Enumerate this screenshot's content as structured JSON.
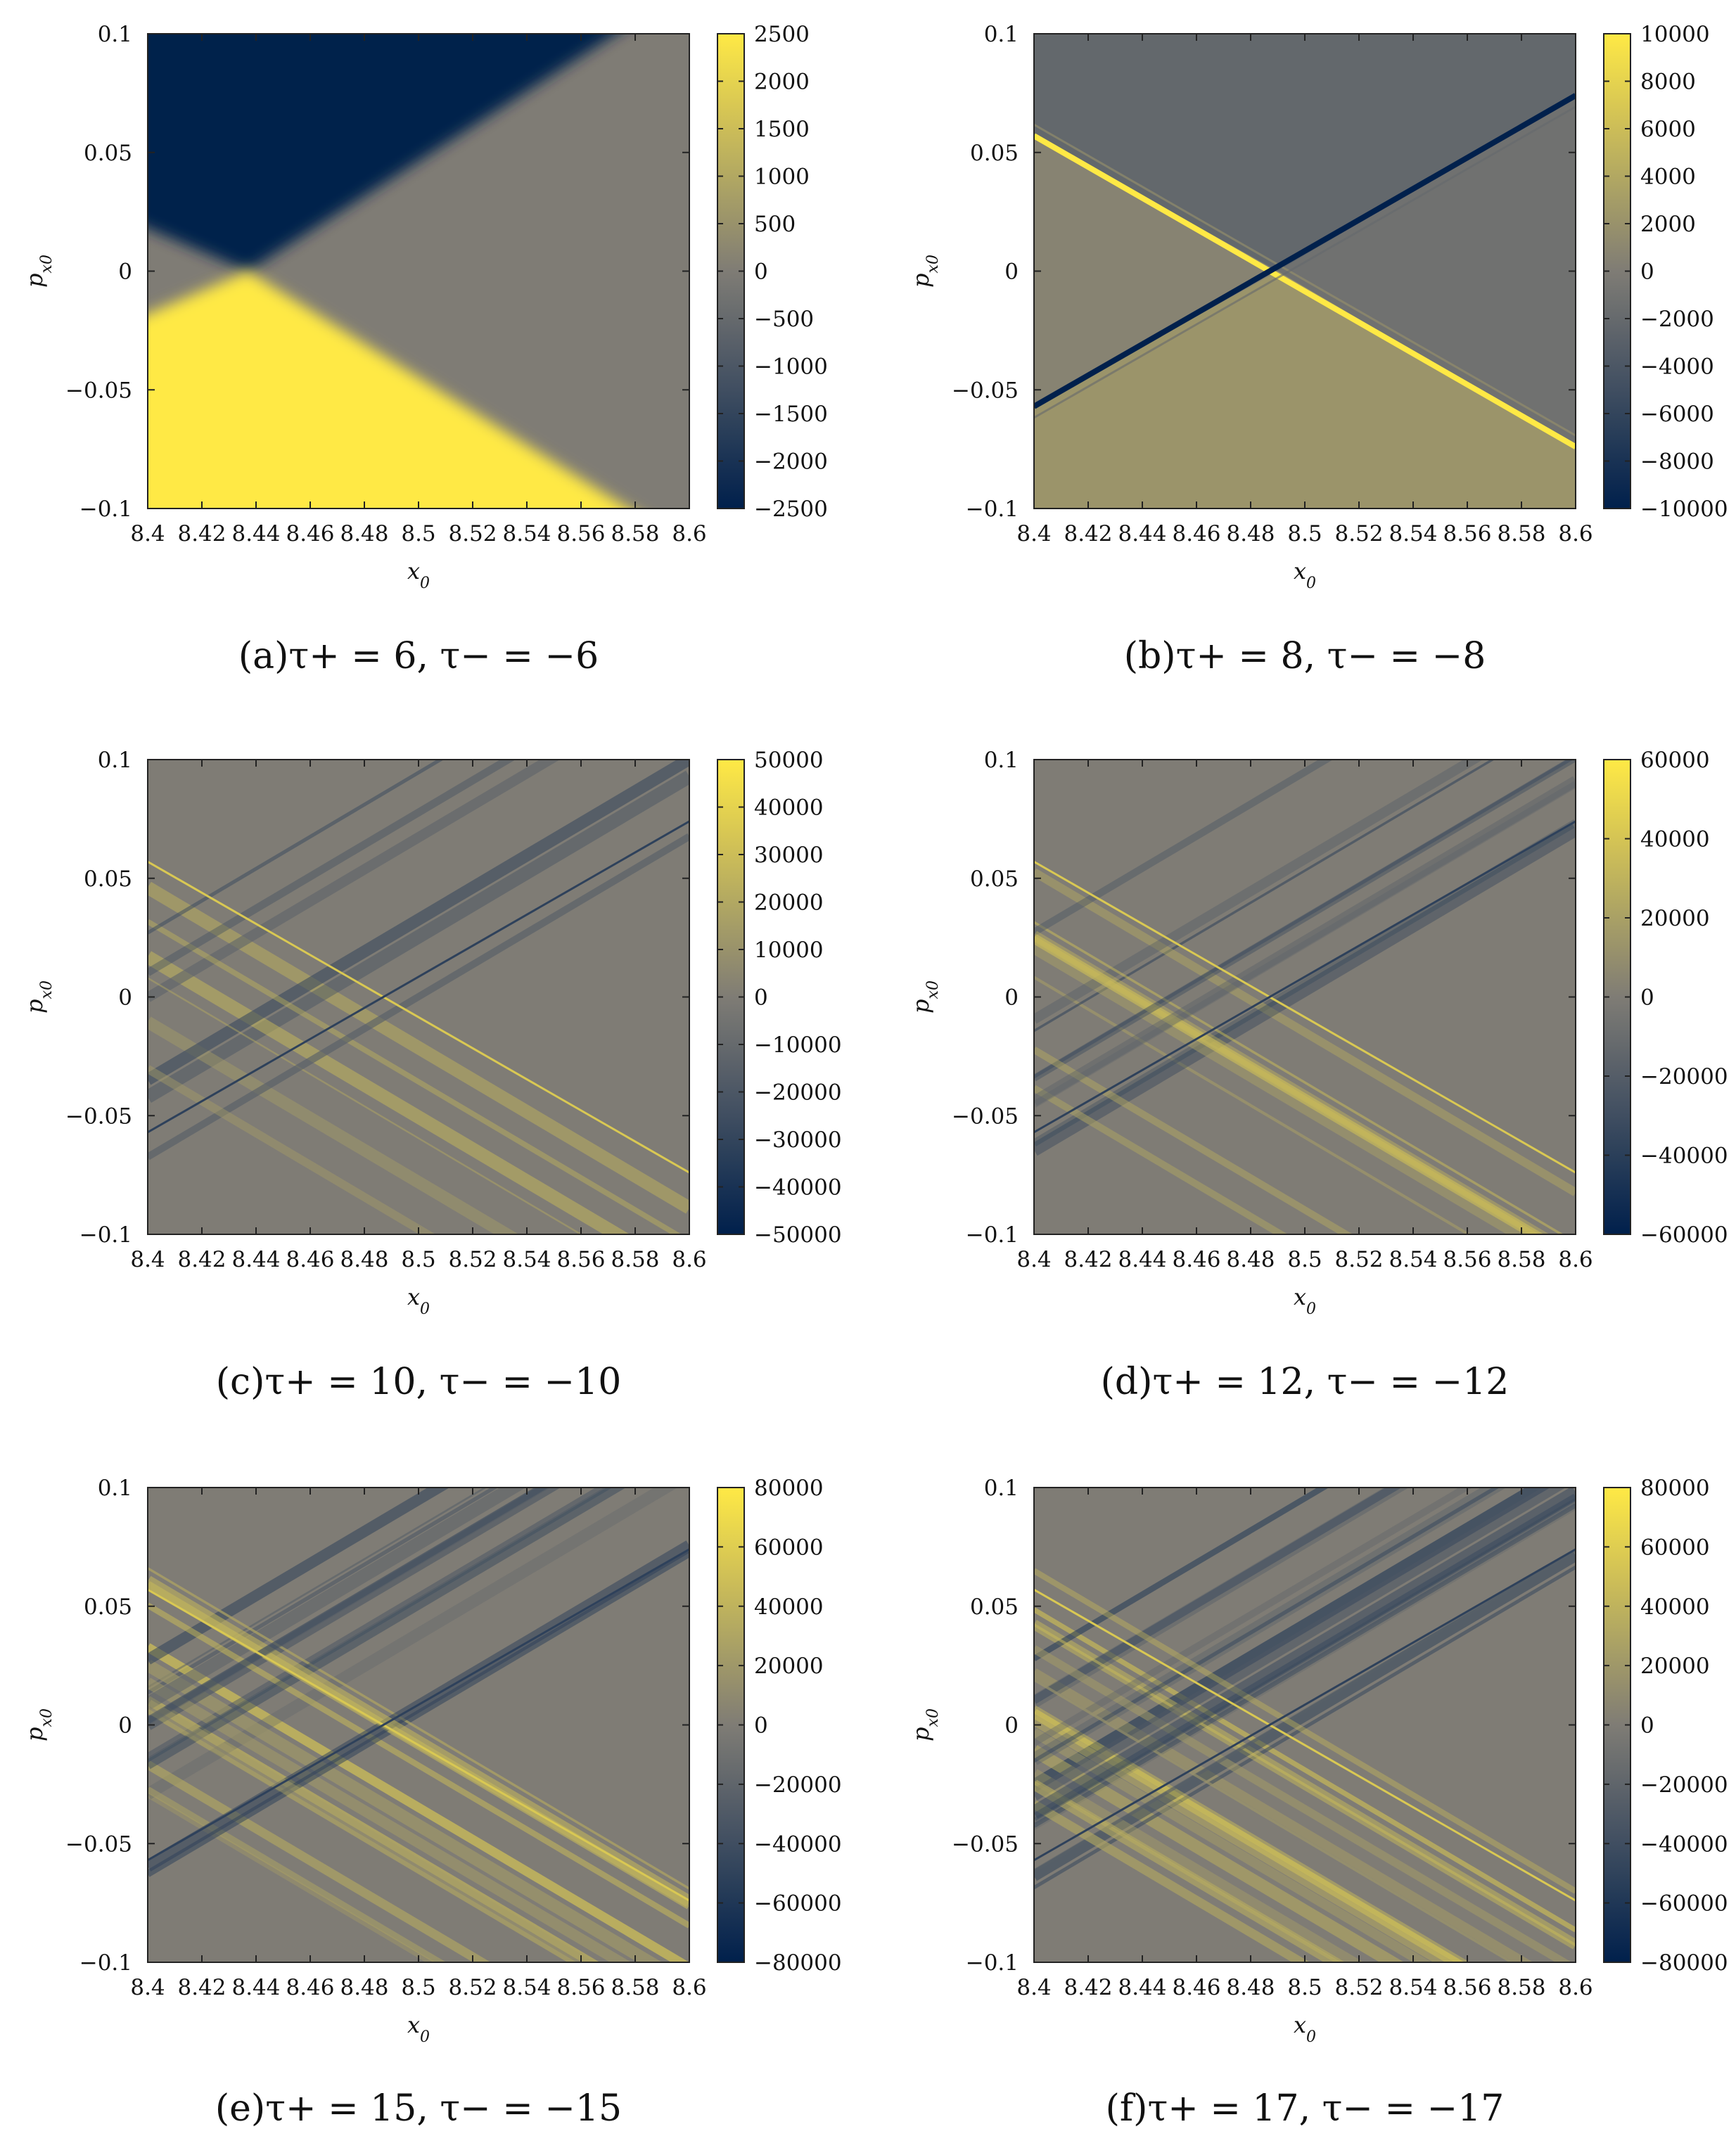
{
  "colors": {
    "cmap_low": "#00204c",
    "cmap_mid": "#7f7c75",
    "cmap_high": "#ffe945"
  },
  "chart_data": [
    {
      "type": "heatmap",
      "caption": "(a)τ+ = 6, τ− = −6",
      "xlabel": "x0",
      "ylabel": "px0",
      "xlim": [
        8.4,
        8.6
      ],
      "ylim": [
        -0.1,
        0.1
      ],
      "x_ticks": [
        "8.4",
        "8.42",
        "8.44",
        "8.46",
        "8.48",
        "8.5",
        "8.52",
        "8.54",
        "8.56",
        "8.58",
        "8.6"
      ],
      "y_ticks": [
        "−0.1",
        "−0.05",
        "0",
        "0.05",
        "0.1"
      ],
      "colorbar_range": [
        -2500,
        2500
      ],
      "colorbar_ticks": [
        "−2500",
        "−2000",
        "−1500",
        "−1000",
        "−500",
        "0",
        "500",
        "1000",
        "1500",
        "2000",
        "2500"
      ],
      "pattern": "regions",
      "regions": {
        "vertex": [
          8.437,
          0.0
        ],
        "upper_edge_end": [
          8.585,
          0.1
        ],
        "lower_edge_end": [
          8.59,
          -0.1
        ],
        "left_upper_value": -2500,
        "left_lower_value": 2500,
        "right_value": 0
      }
    },
    {
      "type": "heatmap",
      "caption": "(b)τ+ = 8, τ− = −8",
      "xlabel": "x0",
      "ylabel": "px0",
      "xlim": [
        8.4,
        8.6
      ],
      "ylim": [
        -0.1,
        0.1
      ],
      "x_ticks": [
        "8.4",
        "8.42",
        "8.44",
        "8.46",
        "8.48",
        "8.5",
        "8.52",
        "8.54",
        "8.56",
        "8.58",
        "8.6"
      ],
      "y_ticks": [
        "−0.1",
        "−0.05",
        "0",
        "0.05",
        "0.1"
      ],
      "colorbar_range": [
        -10000,
        10000
      ],
      "colorbar_ticks": [
        "−10000",
        "−8000",
        "−6000",
        "−4000",
        "−2000",
        "0",
        "2000",
        "4000",
        "6000",
        "8000",
        "10000"
      ],
      "pattern": "two_lines",
      "background": {
        "top_value": -2200,
        "bottom_value": 2200,
        "right_value": -1200,
        "left_value": 600
      },
      "lines": [
        {
          "x": [
            8.4,
            8.6
          ],
          "y": [
            0.057,
            -0.074
          ],
          "value": 10000
        },
        {
          "x": [
            8.4,
            8.6
          ],
          "y": [
            -0.057,
            0.074
          ],
          "value": -10000
        }
      ]
    },
    {
      "type": "heatmap",
      "caption": "(c)τ+ = 10, τ− = −10",
      "xlabel": "x0",
      "ylabel": "px0",
      "xlim": [
        8.4,
        8.6
      ],
      "ylim": [
        -0.1,
        0.1
      ],
      "x_ticks": [
        "8.4",
        "8.42",
        "8.44",
        "8.46",
        "8.48",
        "8.5",
        "8.52",
        "8.54",
        "8.56",
        "8.58",
        "8.6"
      ],
      "y_ticks": [
        "−0.1",
        "−0.05",
        "0",
        "0.05",
        "0.1"
      ],
      "colorbar_range": [
        -50000,
        50000
      ],
      "colorbar_ticks": [
        "−50000",
        "−40000",
        "−30000",
        "−20000",
        "−10000",
        "0",
        "10000",
        "20000",
        "30000",
        "40000",
        "50000"
      ],
      "pattern": "bands",
      "band_count": 6,
      "seed": 3
    },
    {
      "type": "heatmap",
      "caption": "(d)τ+ = 12, τ− = −12",
      "xlabel": "x0",
      "ylabel": "px0",
      "xlim": [
        8.4,
        8.6
      ],
      "ylim": [
        -0.1,
        0.1
      ],
      "x_ticks": [
        "8.4",
        "8.42",
        "8.44",
        "8.46",
        "8.48",
        "8.5",
        "8.52",
        "8.54",
        "8.56",
        "8.58",
        "8.6"
      ],
      "y_ticks": [
        "−0.1",
        "−0.05",
        "0",
        "0.05",
        "0.1"
      ],
      "colorbar_range": [
        -60000,
        60000
      ],
      "colorbar_ticks": [
        "−60000",
        "−40000",
        "−20000",
        "0",
        "20000",
        "40000",
        "60000"
      ],
      "pattern": "bands",
      "band_count": 9,
      "seed": 7
    },
    {
      "type": "heatmap",
      "caption": "(e)τ+ = 15, τ− = −15",
      "xlabel": "x0",
      "ylabel": "px0",
      "xlim": [
        8.4,
        8.6
      ],
      "ylim": [
        -0.1,
        0.1
      ],
      "x_ticks": [
        "8.4",
        "8.42",
        "8.44",
        "8.46",
        "8.48",
        "8.5",
        "8.52",
        "8.54",
        "8.56",
        "8.58",
        "8.6"
      ],
      "y_ticks": [
        "−0.1",
        "−0.05",
        "0",
        "0.05",
        "0.1"
      ],
      "colorbar_range": [
        -80000,
        80000
      ],
      "colorbar_ticks": [
        "−80000",
        "−60000",
        "−40000",
        "−20000",
        "0",
        "20000",
        "40000",
        "60000",
        "80000"
      ],
      "pattern": "bands",
      "band_count": 13,
      "seed": 11
    },
    {
      "type": "heatmap",
      "caption": "(f)τ+ = 17, τ− = −17",
      "xlabel": "x0",
      "ylabel": "px0",
      "xlim": [
        8.4,
        8.6
      ],
      "ylim": [
        -0.1,
        0.1
      ],
      "x_ticks": [
        "8.4",
        "8.42",
        "8.44",
        "8.46",
        "8.48",
        "8.5",
        "8.52",
        "8.54",
        "8.56",
        "8.58",
        "8.6"
      ],
      "y_ticks": [
        "−0.1",
        "−0.05",
        "0",
        "0.05",
        "0.1"
      ],
      "colorbar_range": [
        -80000,
        80000
      ],
      "colorbar_ticks": [
        "−80000",
        "−60000",
        "−40000",
        "−20000",
        "0",
        "20000",
        "40000",
        "60000",
        "80000"
      ],
      "pattern": "bands",
      "band_count": 16,
      "seed": 19
    }
  ]
}
